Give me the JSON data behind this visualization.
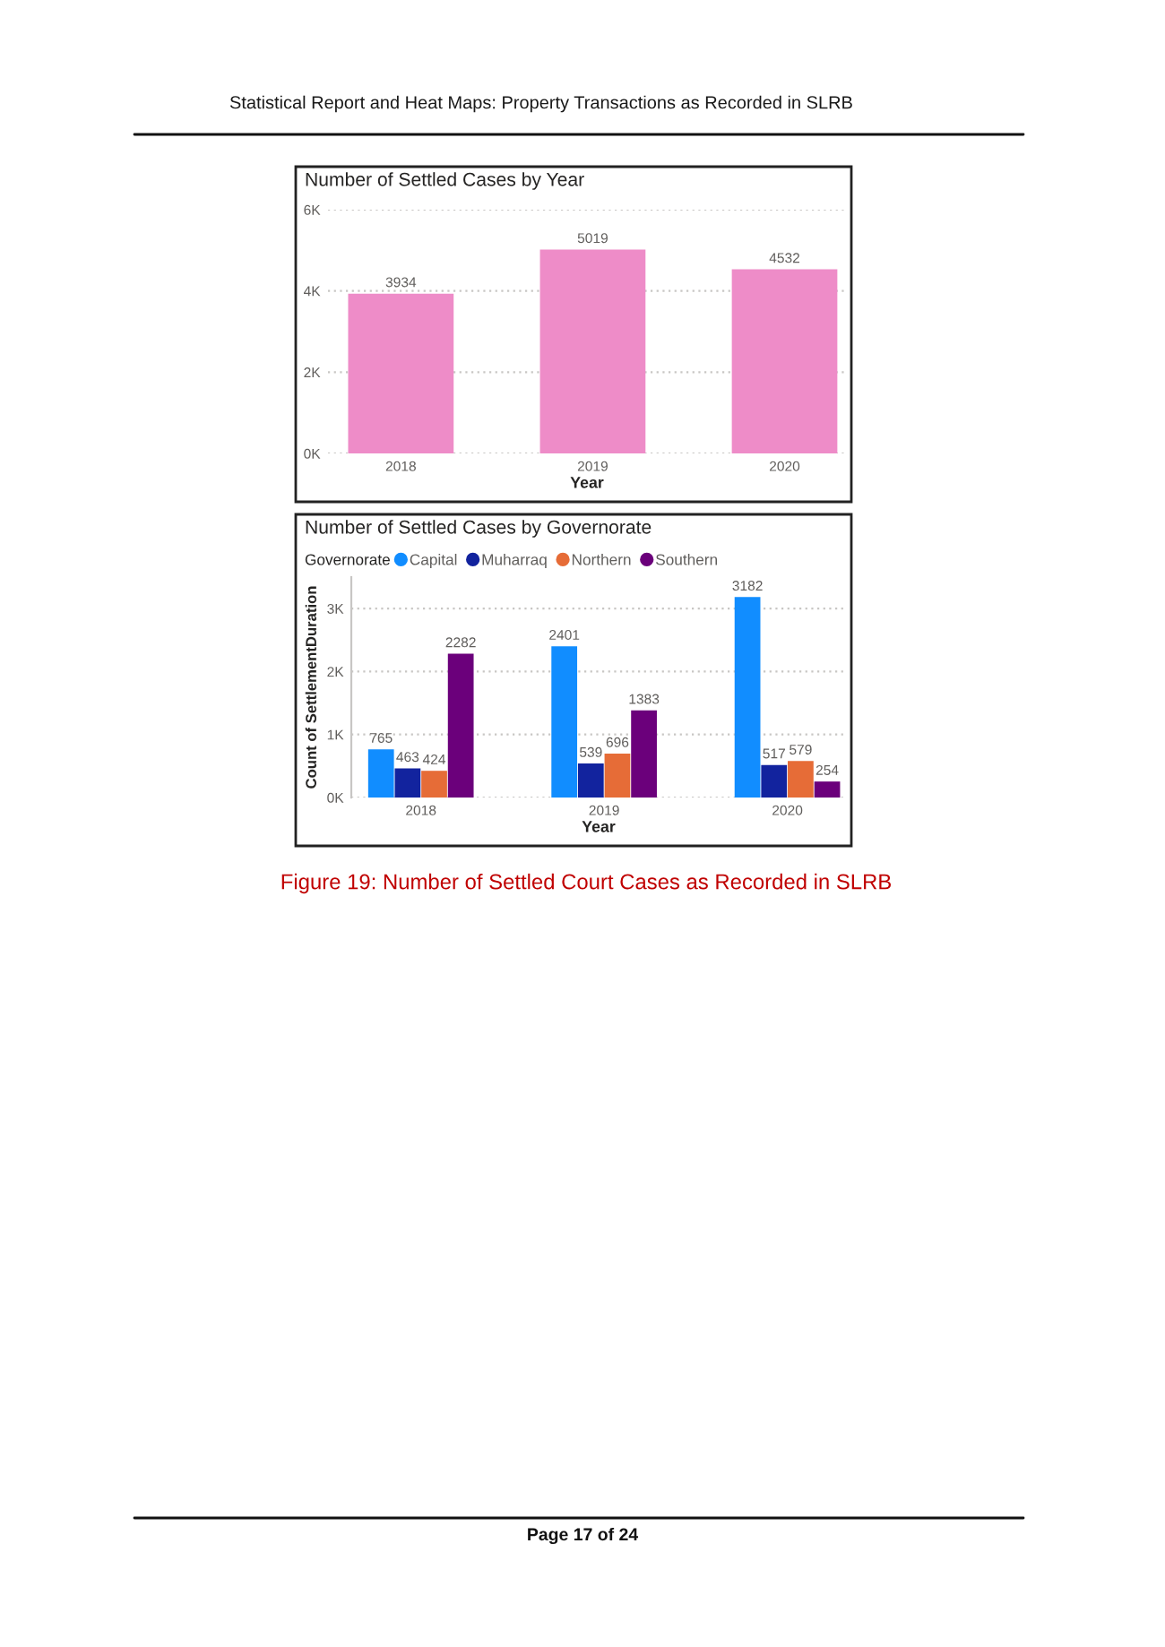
{
  "chart_data": [
    {
      "type": "bar",
      "title": "Number of Settled Cases by Year",
      "xlabel": "Year",
      "categories": [
        "2018",
        "2019",
        "2020"
      ],
      "values": [
        3934,
        5019,
        4532
      ],
      "color": "#ee8cc8",
      "ylim": [
        0,
        6000
      ],
      "yticks": [
        {
          "value": 0,
          "label": "0K"
        },
        {
          "value": 2000,
          "label": "2K"
        },
        {
          "value": 4000,
          "label": "4K"
        },
        {
          "value": 6000,
          "label": "6K"
        }
      ],
      "grid": "y",
      "data_labels": true,
      "annotations": [
        "Statistical Report and Heat Maps: Property Transactions as Recorded in SLRB"
      ]
    },
    {
      "type": "bar",
      "title": "Number of Settled Cases by Governorate",
      "xlabel": "Year",
      "ylabel": "Count of SettlementDuration",
      "legend_title": "Governorate",
      "categories": [
        "2018",
        "2019",
        "2020"
      ],
      "series": [
        {
          "name": "Capital",
          "color": "#118dff",
          "values": [
            765,
            2401,
            3182
          ]
        },
        {
          "name": "Muharraq",
          "color": "#12239e",
          "values": [
            463,
            539,
            517
          ]
        },
        {
          "name": "Northern",
          "color": "#e66c37",
          "values": [
            424,
            696,
            579
          ]
        },
        {
          "name": "Southern",
          "color": "#6b007b",
          "values": [
            2282,
            1383,
            254
          ]
        }
      ],
      "ylim": [
        0,
        3500
      ],
      "yticks": [
        {
          "value": 0,
          "label": "0K"
        },
        {
          "value": 1000,
          "label": "1K"
        },
        {
          "value": 2000,
          "label": "2K"
        },
        {
          "value": 3000,
          "label": "3K"
        }
      ],
      "grid": "y",
      "data_labels": true,
      "legend": "top left",
      "annotations": [
        "Figure 19: Number of Settled Court Cases as Recorded in SLRB",
        "Page 17 of 24"
      ]
    }
  ]
}
